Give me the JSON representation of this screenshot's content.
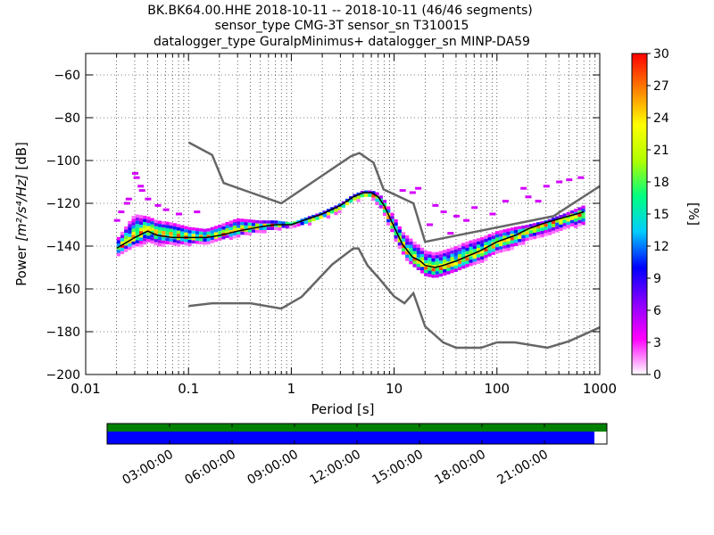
{
  "chart_data": {
    "type": "heatmap",
    "title_lines": [
      "BK.BK64.00.HHE   2018-10-11 -- 2018-10-11  (46/46 segments)",
      "sensor_type CMG-3T sensor_sn T310015",
      "datalogger_type GuralpMinimus+ datalogger_sn MINP-DA59"
    ],
    "xlabel": "Period [s]",
    "ylabel_prefix": "Power ",
    "ylabel_units": "[m²/s⁴/Hz]",
    "ylabel_suffix": " [dB]",
    "x_scale": "log",
    "xlim": [
      0.01,
      1000
    ],
    "ylim": [
      -200,
      -50
    ],
    "x_ticks": [
      {
        "value": 0.01,
        "label": "0.01"
      },
      {
        "value": 0.1,
        "label": "0.1"
      },
      {
        "value": 1,
        "label": "1"
      },
      {
        "value": 10,
        "label": "10"
      },
      {
        "value": 100,
        "label": "100"
      },
      {
        "value": 1000,
        "label": "1000"
      }
    ],
    "y_ticks": [
      {
        "value": -60,
        "label": "−60"
      },
      {
        "value": -80,
        "label": "−80"
      },
      {
        "value": -100,
        "label": "−100"
      },
      {
        "value": -120,
        "label": "−120"
      },
      {
        "value": -140,
        "label": "−140"
      },
      {
        "value": -160,
        "label": "−160"
      },
      {
        "value": -180,
        "label": "−180"
      },
      {
        "value": -200,
        "label": "−200"
      }
    ],
    "grid": "dotted",
    "colorbar": {
      "label": "[%]",
      "range": [
        0,
        30
      ],
      "ticks": [
        {
          "value": 0,
          "label": "0"
        },
        {
          "value": 3,
          "label": "3"
        },
        {
          "value": 6,
          "label": "6"
        },
        {
          "value": 9,
          "label": "9"
        },
        {
          "value": 12,
          "label": "12"
        },
        {
          "value": 15,
          "label": "15"
        },
        {
          "value": 18,
          "label": "18"
        },
        {
          "value": 21,
          "label": "21"
        },
        {
          "value": 24,
          "label": "24"
        },
        {
          "value": 27,
          "label": "27"
        },
        {
          "value": 30,
          "label": "30"
        }
      ],
      "colormap": [
        "#ffffff",
        "#ff00ff",
        "#8a00ff",
        "#0000ff",
        "#00ccff",
        "#00ff80",
        "#b0ff00",
        "#ffff00",
        "#ff8000",
        "#ff0000"
      ]
    },
    "noise_models": [
      {
        "name": "NHNM",
        "color": "#666666",
        "points": [
          [
            0.1,
            -91.5
          ],
          [
            0.17,
            -97.4
          ],
          [
            0.22,
            -110.5
          ],
          [
            0.8,
            -120
          ],
          [
            3.8,
            -98
          ],
          [
            4.6,
            -96.5
          ],
          [
            6.3,
            -101
          ],
          [
            7.9,
            -113.5
          ],
          [
            15.4,
            -120
          ],
          [
            20,
            -138
          ],
          [
            354.8,
            -126
          ],
          [
            1000,
            -112
          ]
        ]
      },
      {
        "name": "NLNM",
        "color": "#666666",
        "points": [
          [
            0.1,
            -168
          ],
          [
            0.17,
            -166.7
          ],
          [
            0.4,
            -166.7
          ],
          [
            0.8,
            -169.2
          ],
          [
            1.26,
            -163.7
          ],
          [
            2.5,
            -148.6
          ],
          [
            4,
            -141.1
          ],
          [
            4.5,
            -141.1
          ],
          [
            5.5,
            -149
          ],
          [
            7.1,
            -155
          ],
          [
            10,
            -163.5
          ],
          [
            12.6,
            -166.7
          ],
          [
            15.4,
            -162
          ],
          [
            20,
            -177.5
          ],
          [
            30,
            -185
          ],
          [
            40,
            -187.5
          ],
          [
            70,
            -187.5
          ],
          [
            100,
            -185
          ],
          [
            150,
            -185
          ],
          [
            310,
            -187.5
          ],
          [
            500,
            -184.5
          ],
          [
            1000,
            -178
          ]
        ]
      }
    ],
    "psd_band": {
      "period": [
        0.02,
        0.03,
        0.04,
        0.05,
        0.07,
        0.1,
        0.15,
        0.2,
        0.3,
        0.5,
        0.7,
        1,
        1.5,
        2,
        3,
        4,
        5,
        6,
        7,
        8,
        10,
        12,
        15,
        18,
        20,
        25,
        30,
        40,
        50,
        70,
        100,
        150,
        200,
        300,
        500,
        700
      ],
      "mode_db": [
        -142,
        -136,
        -132,
        -134,
        -135,
        -136,
        -136,
        -135,
        -133,
        -131,
        -130,
        -130,
        -128,
        -126,
        -122,
        -118,
        -116,
        -116,
        -118,
        -122,
        -132,
        -140,
        -146,
        -148,
        -150,
        -151,
        -150,
        -148,
        -146,
        -143,
        -139,
        -136,
        -133,
        -130,
        -127,
        -125
      ],
      "lower_db": [
        -144,
        -140,
        -138,
        -139,
        -139,
        -139,
        -138,
        -137,
        -135,
        -133,
        -132,
        -131,
        -129,
        -127,
        -123,
        -119,
        -117,
        -117,
        -120,
        -125,
        -135,
        -143,
        -149,
        -152,
        -154,
        -155,
        -154,
        -152,
        -150,
        -147,
        -143,
        -140,
        -137,
        -134,
        -131,
        -130
      ],
      "upper_db": [
        -137,
        -125,
        -126,
        -128,
        -129,
        -131,
        -132,
        -130,
        -127,
        -128,
        -128,
        -129,
        -126,
        -124,
        -120,
        -116,
        -114,
        -114,
        -115,
        -118,
        -126,
        -133,
        -137,
        -140,
        -142,
        -143,
        -142,
        -140,
        -138,
        -136,
        -133,
        -131,
        -130,
        -128,
        -124,
        -121
      ]
    },
    "outliers": [
      {
        "period": 0.03,
        "db": -106
      },
      {
        "period": 0.031,
        "db": -108
      },
      {
        "period": 0.034,
        "db": -112
      },
      {
        "period": 0.035,
        "db": -114
      },
      {
        "period": 0.026,
        "db": -118
      },
      {
        "period": 0.025,
        "db": -120
      },
      {
        "period": 0.022,
        "db": -124
      },
      {
        "period": 0.02,
        "db": -128
      },
      {
        "period": 0.04,
        "db": -118
      },
      {
        "period": 0.05,
        "db": -121
      },
      {
        "period": 0.06,
        "db": -123
      },
      {
        "period": 0.08,
        "db": -125
      },
      {
        "period": 0.12,
        "db": -124
      },
      {
        "period": 12,
        "db": -114
      },
      {
        "period": 15,
        "db": -115
      },
      {
        "period": 17,
        "db": -113
      },
      {
        "period": 25,
        "db": -121
      },
      {
        "period": 30,
        "db": -124
      },
      {
        "period": 40,
        "db": -126
      },
      {
        "period": 60,
        "db": -122
      },
      {
        "period": 90,
        "db": -125
      },
      {
        "period": 120,
        "db": -119
      },
      {
        "period": 200,
        "db": -117
      },
      {
        "period": 300,
        "db": -112
      },
      {
        "period": 400,
        "db": -110
      },
      {
        "period": 500,
        "db": -109
      },
      {
        "period": 650,
        "db": -108
      },
      {
        "period": 250,
        "db": -119
      },
      {
        "period": 180,
        "db": -113
      },
      {
        "period": 22,
        "db": -130
      },
      {
        "period": 35,
        "db": -134
      },
      {
        "period": 50,
        "db": -128
      }
    ],
    "mean_curve_db": [
      -141,
      -136,
      -133,
      -135,
      -136,
      -136,
      -136,
      -135,
      -133,
      -131,
      -130,
      -130,
      -127,
      -125,
      -121,
      -117,
      -115,
      -115,
      -117,
      -121,
      -131,
      -139,
      -145,
      -147,
      -149,
      -150,
      -149,
      -147,
      -145,
      -142,
      -138,
      -135,
      -132,
      -129,
      -126,
      -124
    ]
  },
  "timeline": {
    "time_labels": [
      "03:00:00",
      "06:00:00",
      "09:00:00",
      "12:00:00",
      "15:00:00",
      "18:00:00",
      "21:00:00"
    ],
    "time_hours": [
      3,
      6,
      9,
      12,
      15,
      18,
      21
    ],
    "day_hours": 24,
    "data_coverage_end_hour": 23.4,
    "top_bar_color": "#008000",
    "bottom_bar_color": "#0000ff"
  }
}
